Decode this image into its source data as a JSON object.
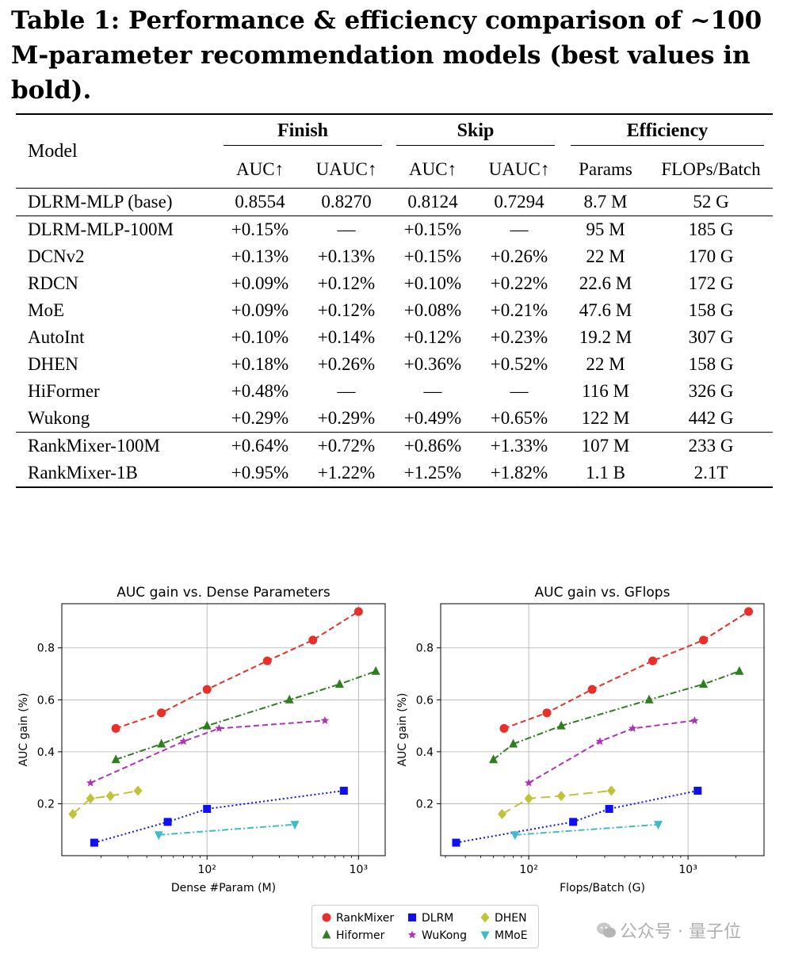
{
  "caption": "Table 1: Performance & efficiency comparison of ~100 M-parameter recommendation models (best values in bold).",
  "table": {
    "model_header": "Model",
    "groups": [
      "Finish",
      "Skip",
      "Efficiency"
    ],
    "subheaders": [
      "AUC↑",
      "UAUC↑",
      "AUC↑",
      "UAUC↑",
      "Params",
      "FLOPs/Batch"
    ],
    "base": [
      "DLRM-MLP (base)",
      "0.8554",
      "0.8270",
      "0.8124",
      "0.7294",
      "8.7 M",
      "52 G"
    ],
    "rows": [
      [
        "DLRM-MLP-100M",
        "+0.15%",
        "—",
        "+0.15%",
        "—",
        "95 M",
        "185 G"
      ],
      [
        "DCNv2",
        "+0.13%",
        "+0.13%",
        "+0.15%",
        "+0.26%",
        "22 M",
        "170 G"
      ],
      [
        "RDCN",
        "+0.09%",
        "+0.12%",
        "+0.10%",
        "+0.22%",
        "22.6 M",
        "172 G"
      ],
      [
        "MoE",
        "+0.09%",
        "+0.12%",
        "+0.08%",
        "+0.21%",
        "47.6 M",
        "158 G"
      ],
      [
        "AutoInt",
        "+0.10%",
        "+0.14%",
        "+0.12%",
        "+0.23%",
        "19.2 M",
        "307 G"
      ],
      [
        "DHEN",
        "+0.18%",
        "+0.26%",
        "+0.36%",
        "+0.52%",
        "22 M",
        "158 G"
      ],
      [
        "HiFormer",
        "+0.48%",
        "—",
        "—",
        "—",
        "116 M",
        "326 G"
      ],
      [
        "Wukong",
        "+0.29%",
        "+0.29%",
        "+0.49%",
        "+0.65%",
        "122 M",
        "442 G"
      ]
    ],
    "rankmixer": [
      [
        "RankMixer-100M",
        "+0.64%",
        "+0.72%",
        "+0.86%",
        "+1.33%",
        "107 M",
        "233 G"
      ],
      [
        "RankMixer-1B",
        "+0.95%",
        "+1.22%",
        "+1.25%",
        "+1.82%",
        "1.1 B",
        "2.1T"
      ]
    ]
  },
  "chart_data": [
    {
      "type": "line",
      "title": "AUC gain vs. Dense Parameters",
      "xlabel": "Dense #Param (M)",
      "ylabel": "AUC gain  (%)",
      "xscale": "log",
      "xlim": [
        11,
        1500
      ],
      "ylim": [
        0,
        0.97
      ],
      "xticks": [
        {
          "value": 100,
          "label": "10²"
        },
        {
          "value": 1000,
          "label": "10³"
        }
      ],
      "yticks": [
        0.2,
        0.4,
        0.6,
        0.8
      ],
      "grid": true,
      "series": [
        {
          "name": "RankMixer",
          "color": "#e8302a",
          "marker": "circle",
          "dash": "dashed",
          "x": [
            25,
            50,
            100,
            250,
            500,
            1000
          ],
          "y": [
            0.49,
            0.55,
            0.64,
            0.75,
            0.83,
            0.94
          ]
        },
        {
          "name": "Hiformer",
          "color": "#2e7d1f",
          "marker": "triangle-up",
          "dash": "dashdot",
          "x": [
            25,
            50,
            100,
            350,
            750,
            1300
          ],
          "y": [
            0.37,
            0.43,
            0.5,
            0.6,
            0.66,
            0.71
          ]
        },
        {
          "name": "WuKong",
          "color": "#b034b8",
          "marker": "star",
          "dash": "dashed",
          "x": [
            17,
            70,
            120,
            600
          ],
          "y": [
            0.28,
            0.44,
            0.49,
            0.52
          ]
        },
        {
          "name": "DHEN",
          "color": "#c2c23a",
          "marker": "diamond",
          "dash": "longdash",
          "x": [
            13,
            17,
            23,
            35
          ],
          "y": [
            0.16,
            0.22,
            0.23,
            0.25
          ]
        },
        {
          "name": "DLRM",
          "color": "#1010ee",
          "marker": "square",
          "dash": "dotted",
          "x": [
            18,
            55,
            100,
            800
          ],
          "y": [
            0.05,
            0.13,
            0.18,
            0.25
          ]
        },
        {
          "name": "MMoE",
          "color": "#40bcc8",
          "marker": "triangle-down",
          "dash": "dashdot",
          "x": [
            48,
            380
          ],
          "y": [
            0.08,
            0.12
          ]
        }
      ]
    },
    {
      "type": "line",
      "title": "AUC gain vs. GFlops",
      "xlabel": "Flops/Batch (G)",
      "ylabel": "AUC gain  (%)",
      "xscale": "log",
      "xlim": [
        28,
        3000
      ],
      "ylim": [
        0,
        0.97
      ],
      "xticks": [
        {
          "value": 100,
          "label": "10²"
        },
        {
          "value": 1000,
          "label": "10³"
        }
      ],
      "yticks": [
        0.2,
        0.4,
        0.6,
        0.8
      ],
      "grid": true,
      "series": [
        {
          "name": "RankMixer",
          "color": "#e8302a",
          "marker": "circle",
          "dash": "dashed",
          "x": [
            70,
            130,
            250,
            600,
            1250,
            2400
          ],
          "y": [
            0.49,
            0.55,
            0.64,
            0.75,
            0.83,
            0.94
          ]
        },
        {
          "name": "Hiformer",
          "color": "#2e7d1f",
          "marker": "triangle-up",
          "dash": "dashdot",
          "x": [
            60,
            80,
            160,
            570,
            1250,
            2100
          ],
          "y": [
            0.37,
            0.43,
            0.5,
            0.6,
            0.66,
            0.71
          ]
        },
        {
          "name": "WuKong",
          "color": "#b034b8",
          "marker": "star",
          "dash": "dashed",
          "x": [
            100,
            280,
            450,
            1100
          ],
          "y": [
            0.28,
            0.44,
            0.49,
            0.52
          ]
        },
        {
          "name": "DHEN",
          "color": "#c2c23a",
          "marker": "diamond",
          "dash": "longdash",
          "x": [
            68,
            100,
            160,
            330
          ],
          "y": [
            0.16,
            0.22,
            0.23,
            0.25
          ]
        },
        {
          "name": "DLRM",
          "color": "#1010ee",
          "marker": "square",
          "dash": "dotted",
          "x": [
            35,
            190,
            320,
            1150
          ],
          "y": [
            0.05,
            0.13,
            0.18,
            0.25
          ]
        },
        {
          "name": "MMoE",
          "color": "#40bcc8",
          "marker": "triangle-down",
          "dash": "dashdot",
          "x": [
            82,
            650
          ],
          "y": [
            0.08,
            0.12
          ]
        }
      ]
    }
  ],
  "legend": [
    {
      "name": "RankMixer",
      "color": "#e8302a",
      "marker": "circle"
    },
    {
      "name": "Hiformer",
      "color": "#2e7d1f",
      "marker": "triangle-up"
    },
    {
      "name": "DLRM",
      "color": "#1010ee",
      "marker": "square"
    },
    {
      "name": "WuKong",
      "color": "#b034b8",
      "marker": "star"
    },
    {
      "name": "DHEN",
      "color": "#c2c23a",
      "marker": "diamond"
    },
    {
      "name": "MMoE",
      "color": "#40bcc8",
      "marker": "triangle-down"
    }
  ],
  "watermark": "公众号 · 量子位"
}
